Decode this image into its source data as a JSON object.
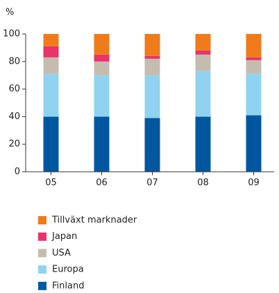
{
  "chart_data": {
    "type": "bar",
    "stacked": true,
    "ylabel": "%",
    "categories": [
      "05",
      "06",
      "07",
      "08",
      "09"
    ],
    "series": [
      {
        "name": "Finland",
        "color": "#0057a0",
        "values": [
          40,
          40,
          39,
          40,
          41
        ]
      },
      {
        "name": "Europa",
        "color": "#8fd3f0",
        "values": [
          31,
          30,
          31,
          33,
          30
        ]
      },
      {
        "name": "USA",
        "color": "#c5bcb0",
        "values": [
          12,
          10,
          12,
          12,
          10
        ]
      },
      {
        "name": "Japan",
        "color": "#e8336b",
        "values": [
          8,
          5,
          2,
          3,
          2
        ]
      },
      {
        "name": "Tillväxt marknader",
        "color": "#f07b1a",
        "values": [
          9,
          15,
          16,
          12,
          17
        ]
      }
    ],
    "ylim": [
      0,
      100
    ],
    "yticks": [
      0,
      20,
      40,
      60,
      80,
      100
    ],
    "grid": false
  }
}
